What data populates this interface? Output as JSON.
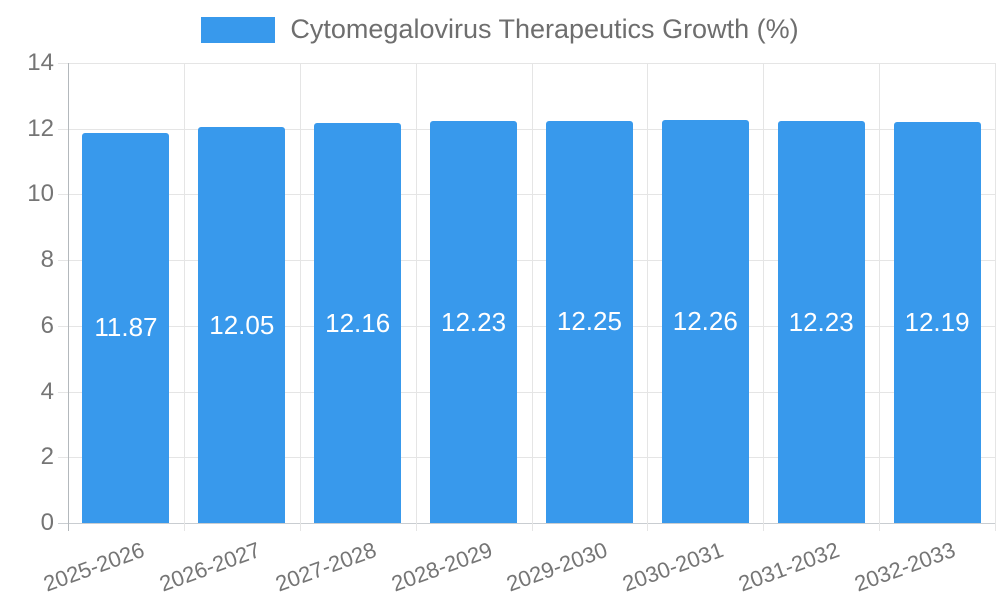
{
  "legend": {
    "label": "Cytomegalovirus Therapeutics Growth (%)"
  },
  "chart_data": {
    "type": "bar",
    "title": "Cytomegalovirus Therapeutics Growth (%)",
    "categories": [
      "2025-2026",
      "2026-2027",
      "2027-2028",
      "2028-2029",
      "2029-2030",
      "2030-2031",
      "2031-2032",
      "2032-2033"
    ],
    "values": [
      11.87,
      12.05,
      12.16,
      12.23,
      12.25,
      12.26,
      12.23,
      12.19
    ],
    "value_labels": [
      "11.87",
      "12.05",
      "12.16",
      "12.23",
      "12.25",
      "12.26",
      "12.23",
      "12.19"
    ],
    "xlabel": "",
    "ylabel": "",
    "ylim": [
      0,
      14
    ],
    "yticks": [
      0,
      2,
      4,
      6,
      8,
      10,
      12,
      14
    ],
    "grid": true,
    "legend_position": "top",
    "bar_color": "#3899ec",
    "value_label_color": "#ffffff",
    "grid_color": "#e5e5e5",
    "axis_color": "#b3b8bc",
    "tick_text_color": "#757575"
  }
}
